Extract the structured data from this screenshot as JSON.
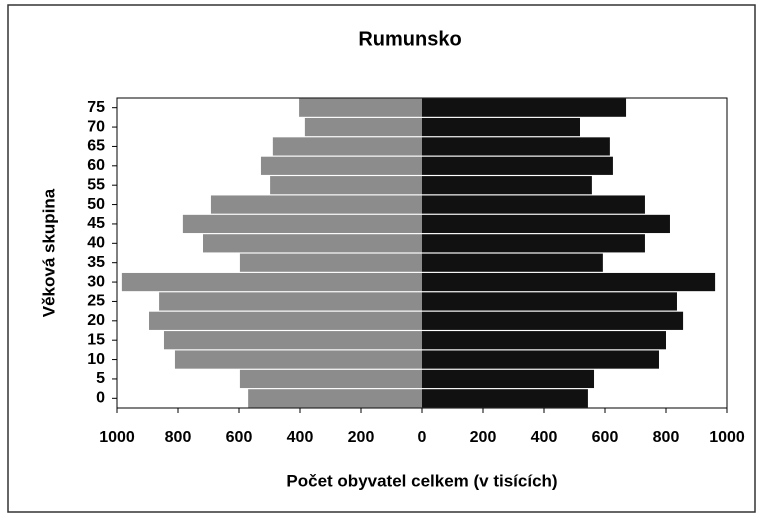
{
  "chart_data": {
    "type": "pyramid",
    "title": "Rumunsko",
    "x_label": "Počet obyvatel celkem (v tisících)",
    "y_label": "Věková skupina",
    "categories": [
      0,
      5,
      10,
      15,
      20,
      25,
      30,
      35,
      40,
      45,
      50,
      55,
      60,
      65,
      70,
      75
    ],
    "series": [
      {
        "color": "#8c8c8c",
        "values": [
          -570,
          -597,
          -810,
          -846,
          -895,
          -862,
          -984,
          -597,
          -718,
          -784,
          -692,
          -498,
          -528,
          -489,
          -384,
          -403
        ]
      },
      {
        "color": "#111111",
        "values": [
          544,
          564,
          777,
          800,
          856,
          836,
          961,
          593,
          731,
          813,
          731,
          557,
          626,
          616,
          518,
          669
        ]
      }
    ],
    "xlim": [
      -1000,
      1000
    ],
    "xticks": [
      {
        "value": -1000,
        "label": "1000"
      },
      {
        "value": -800,
        "label": "800"
      },
      {
        "value": -600,
        "label": "600"
      },
      {
        "value": -400,
        "label": "400"
      },
      {
        "value": -200,
        "label": "200"
      },
      0,
      200,
      400,
      600,
      800,
      1000
    ]
  }
}
